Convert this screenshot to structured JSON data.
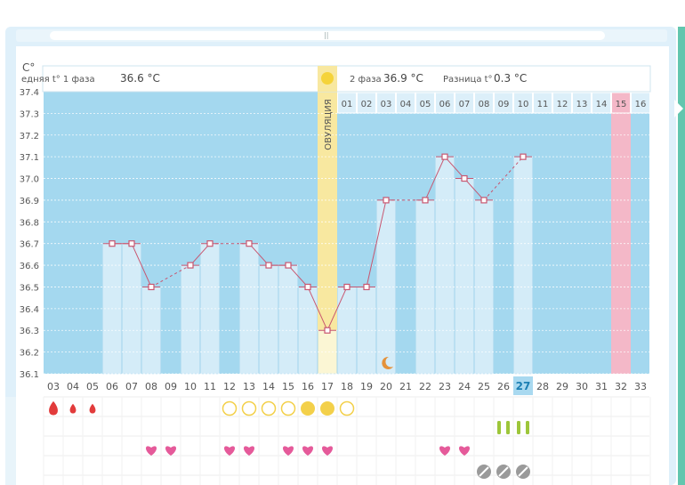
{
  "chart_data": {
    "type": "line",
    "ylabel": "C°",
    "ylim": [
      36.1,
      37.4
    ],
    "yticks": [
      "37.4",
      "37.3",
      "37.2",
      "37.1",
      "37.0",
      "36.9",
      "36.8",
      "36.7",
      "36.6",
      "36.5",
      "36.4",
      "36.3",
      "36.2",
      "36.1"
    ],
    "header": {
      "phase1_label": "едняя t° 1 фаза",
      "phase1_value": "36.6 °C",
      "phase2_label": "2 фаза",
      "phase2_value": "36.9 °C",
      "diff_label": "Разница t°",
      "diff_value": "0.3 °C",
      "ovulation_label": "ОВУЛЯЦИЯ"
    },
    "day_labels": [
      "03",
      "04",
      "05",
      "06",
      "07",
      "08",
      "09",
      "10",
      "11",
      "12",
      "13",
      "14",
      "15",
      "16",
      "17",
      "18",
      "19",
      "20",
      "21",
      "22",
      "23",
      "24",
      "25",
      "26",
      "27",
      "28",
      "29",
      "30",
      "31",
      "32",
      "33"
    ],
    "today_label": "27",
    "ovulation_day": "17",
    "period_day": "32",
    "phase2_numbers": [
      "01",
      "02",
      "03",
      "04",
      "05",
      "06",
      "07",
      "08",
      "09",
      "10",
      "11",
      "12",
      "13",
      "14",
      "15",
      "16"
    ],
    "series": [
      {
        "temps": [
          null,
          null,
          null,
          36.7,
          36.7,
          36.5,
          null,
          36.6,
          36.7,
          null,
          36.7,
          36.6,
          36.6,
          36.5,
          36.3,
          36.5,
          36.5,
          36.9,
          null,
          36.9,
          37.1,
          37.0,
          36.9,
          null,
          37.1,
          null,
          null,
          null,
          null,
          null,
          null
        ],
        "dashed_after": [
          false,
          false,
          false,
          false,
          false,
          true,
          false,
          false,
          true,
          false,
          false,
          false,
          false,
          false,
          false,
          false,
          false,
          true,
          false,
          false,
          false,
          false,
          true,
          false,
          false,
          false,
          false,
          false,
          false,
          false,
          false
        ]
      }
    ],
    "moon_day": "20",
    "symbols": {
      "blood_days": [
        "03",
        "04",
        "05"
      ],
      "mucus_open_days": [
        "12",
        "13",
        "14",
        "15",
        "18"
      ],
      "mucus_filled_days": [
        "16",
        "17"
      ],
      "test_days": [
        "26",
        "27"
      ],
      "heart_days": [
        "08",
        "09",
        "12",
        "13",
        "15",
        "16",
        "17",
        "23",
        "24"
      ],
      "pill_days": [
        "25",
        "26",
        "27"
      ]
    },
    "colors": {
      "chart_bg": "#a4d8ef",
      "bar": "#d4ecf8",
      "line": "#c85670",
      "ovulation": "#f8e8a0",
      "period": "#f4b8c8",
      "heart": "#e55a9a",
      "blood": "#e23b3b",
      "mucus": "#f3d04a",
      "test": "#9dc63a",
      "pill": "#9a9a9a",
      "moon": "#e4923a"
    }
  }
}
